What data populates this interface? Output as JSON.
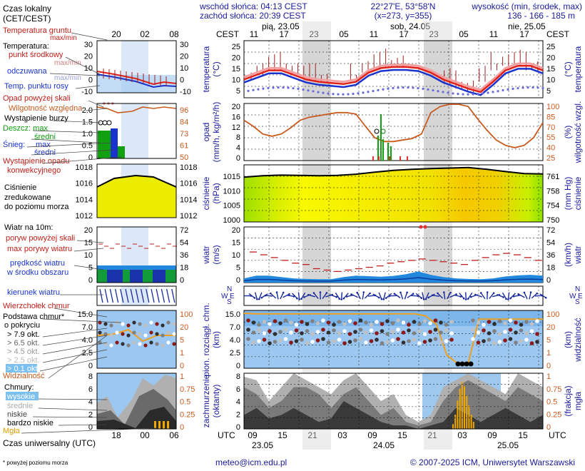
{
  "header": {
    "sunrise": "wschód słońca: 04:13 CEST",
    "sunset": "zachód słońca: 20:39 CEST",
    "coords": "22°27'E, 53°58'N",
    "grid": "(x=273, y=355)",
    "elev_title": "wysokość (min, środek, max)",
    "elev_values": "136 - 166 - 185 m"
  },
  "legend": {
    "local_time": "Czas lokalny",
    "local_time_sub": "(CET/CEST)",
    "local_ticks": [
      "20",
      "02",
      "08"
    ],
    "soil_temp": "Temperatura gruntu",
    "maxmin": "max/min",
    "temperature": "Temperatura:",
    "mid_point": "punkt środkowy",
    "maxmin2": "max/min",
    "felt": "odczuwana",
    "maxmin3": "max/min",
    "dew_point": "Temp. punktu rosy",
    "temp_ticks": [
      "30",
      "20",
      "10",
      "0",
      "-10"
    ],
    "precip_above": "Opad powyżej skali",
    "humidity": "Wilgotność względna",
    "storm": "Wystąpienie burzy",
    "rain_max": "Deszcz: max",
    "rain_mid": "średni",
    "snow_max": "Śnieg:",
    "snow_max2": "max",
    "snow_mid": "średni",
    "conv": "Wystąpienie opadu",
    "conv2": "konwekcyjnego",
    "precip_ticks": [
      "2.0",
      "1.5",
      "1.0",
      "0.5",
      "0"
    ],
    "hum_ticks": [
      "96",
      "84",
      "73",
      "61",
      "50"
    ],
    "pressure_ticks": [
      "1018",
      "1016",
      "1014",
      "1012"
    ],
    "pressure_title": "Ciśnienie",
    "pressure_sub1": "zredukowane",
    "pressure_sub2": "do poziomu morza",
    "wind_title": "Wiatr na 10m:",
    "gust_above": "poryw powyżej skali",
    "max_gust": "max porywy wiatru",
    "wind_speed": "prędkość wiatru",
    "wind_area": "w środku obszaru",
    "wind_ticks_l": [
      "20",
      "15",
      "10",
      "5",
      "0"
    ],
    "wind_ticks_r": [
      "72",
      "54",
      "36",
      "18",
      "0"
    ],
    "wind_dir": "kierunek wiatru",
    "cloud_top": "Wierzchołek chmur",
    "cloud_base": "Podstawa chmur*",
    "cover": "o pokryciu",
    "okt1": "> 7.9 okt.",
    "okt2": "> 6.5 okt.",
    "okt3": "> 4.5 okt.",
    "okt4": "> 2.5 okt.",
    "okt5": "> 0.1 okt.",
    "visibility": "Widzialność",
    "cb_ticks_l": [
      "15.0",
      "7.0",
      "4.0",
      "2.5",
      "0"
    ],
    "cb_ticks_r": [
      "100",
      "20",
      "5",
      "1",
      "0"
    ],
    "clouds": "Chmury:",
    "high": "wysokie",
    "mid": "średnie",
    "low": "niskie",
    "very_low": "bardzo niskie",
    "fog": "Mgła",
    "cl_ticks_l": [
      "8",
      "6",
      "4",
      "2",
      "0"
    ],
    "cl_ticks_r": [
      "1",
      "0.75",
      "0.5",
      "0.25",
      "0"
    ],
    "utc": "Czas uniwersalny (UTC)",
    "utc_ticks": [
      "18",
      "00",
      "06"
    ],
    "footnote": "* powyżej poziomu morza"
  },
  "main": {
    "cest": "CEST",
    "utc": "UTC",
    "days_top": [
      "pią, 23.05",
      "sob, 24.05",
      "nie, 25.05"
    ],
    "hours_top": [
      "11",
      "17",
      "23",
      "05",
      "11",
      "17",
      "23",
      "05",
      "11",
      "17"
    ],
    "hours_bottom": [
      "09",
      "15",
      "21",
      "03",
      "09",
      "15",
      "21",
      "03",
      "09",
      "15"
    ],
    "days_bottom": [
      "23.05",
      "24.05",
      "25.05"
    ],
    "temp_label": "temperatura",
    "temp_unit": "(°C)",
    "temp_ticks": [
      "25",
      "20",
      "15",
      "10",
      "5"
    ],
    "precip_label": "opad",
    "precip_unit": "(mm/h, kg/m²/h)",
    "precip_ticks": [
      "20",
      "16",
      "12",
      "8",
      "4",
      "0"
    ],
    "hum_label": "wilgotność wzgl.",
    "hum_unit": "(%)",
    "hum_ticks": [
      "100",
      "85",
      "70",
      "55",
      "40",
      "25"
    ],
    "pres_label": "ciśnienie",
    "pres_unit": "(hPa)",
    "pres_ticks": [
      "1015",
      "1010",
      "1005",
      "1000"
    ],
    "pres_r_label": "ciśnienie",
    "pres_r_unit": "(mm Hg)",
    "pres_r_ticks": [
      "761",
      "758",
      "754",
      "750"
    ],
    "wind_label": "wiatr",
    "wind_unit": "(m/s)",
    "wind_ticks": [
      "20",
      "15",
      "10",
      "5",
      "0"
    ],
    "wind_r_label": "wiatr",
    "wind_r_unit": "(km/h)",
    "wind_r_ticks": [
      "72",
      "54",
      "36",
      "18",
      "0"
    ],
    "cb_label": "pion. rozciągł. chm.",
    "cb_unit": "(km)",
    "cb_ticks": [
      "15.0",
      "7.0",
      "4.0",
      "2.5",
      "0"
    ],
    "vis_label": "widzialność",
    "vis_unit": "(km)",
    "vis_ticks": [
      "100",
      "20",
      "5",
      "1",
      "0"
    ],
    "cl_label": "zachmurzenie",
    "cl_unit": "(oktanty)",
    "cl_ticks": [
      "8",
      "6",
      "4",
      "2",
      "0"
    ],
    "fog_label": "mgła",
    "fog_unit": "(frakcja)",
    "fog_ticks": [
      "1",
      "0.75",
      "0.5",
      "0.25",
      "0"
    ],
    "compass": {
      "n": "N",
      "w": "W",
      "e": "E",
      "s": "S"
    }
  },
  "footer": {
    "email": "meteo@icm.edu.pl",
    "copyright": "© 2007-2025 ICM, Uniwersytet Warszawski"
  },
  "colors": {
    "temp": "#e0201a",
    "felt": "#1a33cc",
    "humidity": "#c85a1e",
    "visibility": "#f0a020",
    "pressure_fill": "#ecec00",
    "cloud_bg": "#9cc7f0",
    "night": "#d6d6d6"
  },
  "chart_data": {
    "type": "line",
    "x": [
      "23.05 09",
      "23.05 15",
      "23.05 21",
      "24.05 03",
      "24.05 09",
      "24.05 15",
      "24.05 21",
      "25.05 03",
      "25.05 09",
      "25.05 15"
    ],
    "series": [
      {
        "name": "temperatura",
        "values": [
          9,
          13,
          10,
          8,
          15,
          15,
          8,
          5,
          15,
          16
        ]
      },
      {
        "name": "odczuwana",
        "values": [
          8,
          12,
          9,
          7,
          14,
          14,
          7,
          4,
          14,
          15
        ]
      },
      {
        "name": "ciśnienie",
        "values": [
          1013,
          1014,
          1014,
          1014,
          1015,
          1015,
          1017,
          1017,
          1016,
          1015
        ]
      },
      {
        "name": "wilgotność wzgl.",
        "values": [
          75,
          70,
          85,
          90,
          55,
          50,
          90,
          97,
          65,
          45
        ]
      },
      {
        "name": "wiatr",
        "values": [
          2,
          2.5,
          2,
          1.5,
          2,
          2.5,
          1.5,
          1,
          2,
          2.5
        ]
      }
    ]
  }
}
